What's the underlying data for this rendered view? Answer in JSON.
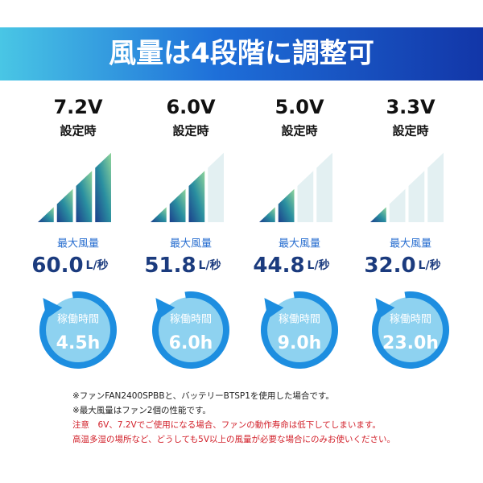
{
  "header": {
    "title": "風量は4段階に調整可"
  },
  "columns": [
    {
      "voltage": "7.2V",
      "setting": "設定時",
      "airflow_label": "最大風量",
      "airflow": "60.0",
      "unit": "L/秒",
      "runtime_label": "稼働時間",
      "runtime": "4.5h"
    },
    {
      "voltage": "6.0V",
      "setting": "設定時",
      "airflow_label": "最大風量",
      "airflow": "51.8",
      "unit": "L/秒",
      "runtime_label": "稼働時間",
      "runtime": "6.0h"
    },
    {
      "voltage": "5.0V",
      "setting": "設定時",
      "airflow_label": "最大風量",
      "airflow": "44.8",
      "unit": "L/秒",
      "runtime_label": "稼働時間",
      "runtime": "9.0h"
    },
    {
      "voltage": "3.3V",
      "setting": "設定時",
      "airflow_label": "最大風量",
      "airflow": "32.0",
      "unit": "L/秒",
      "runtime_label": "稼働時間",
      "runtime": "23.0h"
    }
  ],
  "notes": [
    "※ファンFAN2400SPBBと、バッテリーBTSP1を使用した場合です。",
    "※最大風量はファン2個の性能です。",
    "注意　6V、7.2Vでご使用になる場合、ファンの動作寿命は低下してしまいます。",
    "高温多湿の場所など、どうしても5V以上の風量が必要な場合にのみお使いください。"
  ]
}
